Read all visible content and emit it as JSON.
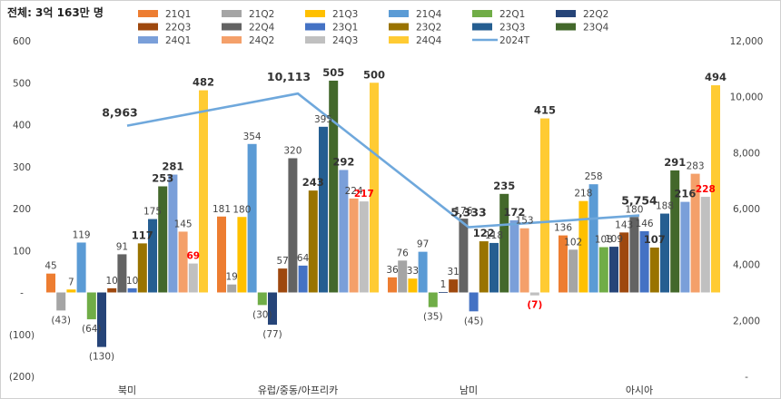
{
  "chart_data": {
    "type": "bar",
    "title": "전체: 3억 163만 명",
    "categories": [
      "북미",
      "유럽/중동/아프리카",
      "남미",
      "아시아"
    ],
    "ylim": [
      -200,
      600
    ],
    "y_ticks": [
      "(200)",
      "(100)",
      "-",
      "100",
      "200",
      "300",
      "400",
      "500",
      "600"
    ],
    "y2lim": [
      0,
      12000
    ],
    "y2_ticks": [
      "-",
      "2,000",
      "4,000",
      "6,000",
      "8,000",
      "10,000",
      "12,000"
    ],
    "series": [
      {
        "name": "21Q1",
        "color": "#ED7D31",
        "values": [
          45,
          181,
          36,
          136
        ],
        "labels": [
          "45",
          "181",
          "36",
          "136"
        ]
      },
      {
        "name": "21Q2",
        "color": "#A5A5A5",
        "values": [
          -43,
          19,
          76,
          102
        ],
        "labels": [
          "(43)",
          "19",
          "76",
          "102"
        ]
      },
      {
        "name": "21Q3",
        "color": "#FFC000",
        "values": [
          7,
          180,
          33,
          218
        ],
        "labels": [
          "7",
          "180",
          "33",
          "218"
        ]
      },
      {
        "name": "21Q4",
        "color": "#5B9BD5",
        "values": [
          119,
          354,
          97,
          258
        ],
        "labels": [
          "119",
          "354",
          "97",
          "258"
        ]
      },
      {
        "name": "22Q1",
        "color": "#70AD47",
        "values": [
          -64,
          -30,
          -35,
          108
        ],
        "labels": [
          "(64)",
          "(30)",
          "(35)",
          "108"
        ]
      },
      {
        "name": "22Q2",
        "color": "#264478",
        "values": [
          -130,
          -77,
          1,
          109
        ],
        "labels": [
          "(130)",
          "(77)",
          "1",
          "109"
        ]
      },
      {
        "name": "22Q3",
        "color": "#9E480E",
        "values": [
          10,
          57,
          31,
          143
        ],
        "labels": [
          "10",
          "57",
          "31",
          "143"
        ]
      },
      {
        "name": "22Q4",
        "color": "#636363",
        "values": [
          91,
          320,
          176,
          180
        ],
        "labels": [
          "91",
          "320",
          "176",
          "180"
        ]
      },
      {
        "name": "23Q1",
        "color": "#4472C4",
        "values": [
          10,
          64,
          -45,
          146
        ],
        "labels": [
          "10",
          "64",
          "(45)",
          "146"
        ]
      },
      {
        "name": "23Q2",
        "color": "#997300",
        "values": [
          117,
          243,
          122,
          107
        ],
        "labels": [
          "117",
          "243",
          "122",
          "107"
        ]
      },
      {
        "name": "23Q3",
        "color": "#255E91",
        "values": [
          175,
          395,
          118,
          188
        ],
        "labels": [
          "175",
          "395",
          "118",
          "188"
        ]
      },
      {
        "name": "23Q4",
        "color": "#43682B",
        "values": [
          253,
          505,
          235,
          291
        ],
        "labels": [
          "253",
          "505",
          "235",
          "291"
        ]
      },
      {
        "name": "24Q1",
        "color": "#7A9FD9",
        "values": [
          281,
          292,
          172,
          216
        ],
        "labels": [
          "281",
          "292",
          "172",
          "216"
        ]
      },
      {
        "name": "24Q2",
        "color": "#F4A06A",
        "values": [
          145,
          224,
          153,
          283
        ],
        "labels": [
          "145",
          "224",
          "153",
          "283"
        ]
      },
      {
        "name": "24Q3",
        "color": "#C0C0C0",
        "values": [
          69,
          217,
          -7,
          228
        ],
        "labels": [
          "69",
          "217",
          "(7)",
          "228"
        ]
      },
      {
        "name": "24Q4",
        "color": "#FFCB33",
        "values": [
          482,
          500,
          415,
          494
        ],
        "labels": [
          "482",
          "500",
          "415",
          "494"
        ]
      }
    ],
    "line_series": {
      "name": "2024T",
      "color": "#6FA8DC",
      "axis": "secondary",
      "values": [
        8963,
        10113,
        5333,
        5754
      ],
      "labels": [
        "8,963",
        "10,113",
        "5,333",
        "5,754"
      ]
    }
  }
}
